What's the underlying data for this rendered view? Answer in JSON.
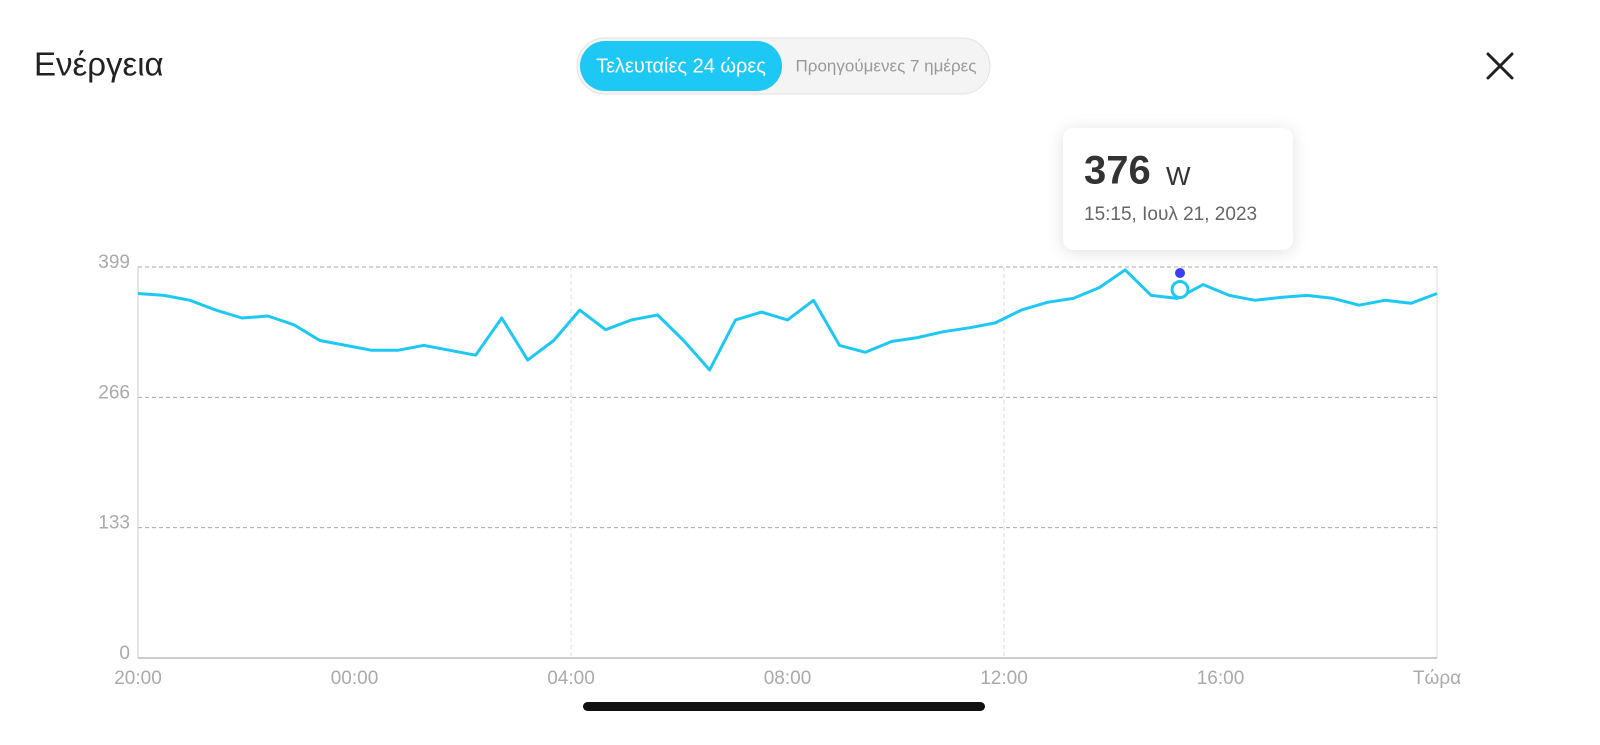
{
  "header": {
    "title": "Ενέργεια",
    "tabs": [
      "Τελευταίες 24 ώρες",
      "Προηγούμενες 7 ημέρες"
    ]
  },
  "tooltip": {
    "value": 376,
    "unit": "W",
    "date": "15:15, Ιουλ 21, 2023"
  },
  "chart_data": {
    "type": "line",
    "x_labels": [
      "20:00",
      "00:00",
      "04:00",
      "08:00",
      "12:00",
      "16:00",
      "Τώρα"
    ],
    "series": [
      {
        "name": "Ενέργεια",
        "color": "#1ec8f5",
        "values": [
          372,
          370,
          365,
          355,
          347,
          349,
          340,
          324,
          319,
          314,
          314,
          319,
          314,
          309,
          347,
          304,
          324,
          355,
          335,
          345,
          350,
          324,
          294,
          345,
          353,
          345,
          365,
          319,
          312,
          323,
          327,
          333,
          337,
          342,
          355,
          363,
          367,
          378,
          396,
          370,
          367,
          381,
          370,
          365,
          368,
          370,
          367,
          360,
          365,
          362,
          372
        ]
      }
    ],
    "ylim": [
      0,
      399
    ],
    "yticks": [
      0,
      133,
      266,
      399
    ],
    "grid": true
  }
}
